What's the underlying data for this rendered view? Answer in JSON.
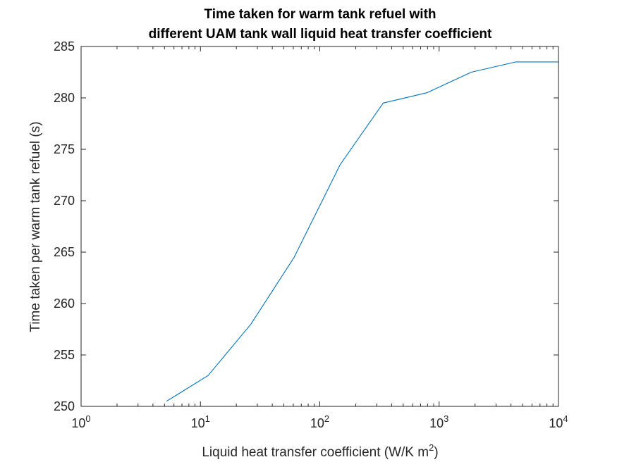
{
  "chart_data": {
    "type": "line",
    "title": [
      "Time taken for warm tank refuel with",
      "different UAM tank wall liquid heat transfer coefficient"
    ],
    "xlabel": "Liquid heat transfer coefficient (W/K m",
    "xlabel_sup": "2",
    "xlabel_end": ")",
    "ylabel": "Time taken per warm tank refuel (s)",
    "xscale": "log",
    "xlim": [
      1,
      10000
    ],
    "ylim": [
      250,
      285
    ],
    "xticks": [
      {
        "base": "10",
        "exp": "0",
        "value": 1
      },
      {
        "base": "10",
        "exp": "1",
        "value": 10
      },
      {
        "base": "10",
        "exp": "2",
        "value": 100
      },
      {
        "base": "10",
        "exp": "3",
        "value": 1000
      },
      {
        "base": "10",
        "exp": "4",
        "value": 10000
      }
    ],
    "yticks": [
      250,
      255,
      260,
      265,
      270,
      275,
      280,
      285
    ],
    "grid": false,
    "box": true,
    "line_color": "#0072BD",
    "series": [
      {
        "x": [
          5.2,
          11.6,
          26.5,
          61,
          148,
          340,
          790,
          1860,
          4400,
          10000
        ],
        "y": [
          250.5,
          253,
          258,
          264.5,
          273.5,
          279.5,
          280.5,
          282.5,
          283.5,
          283.5
        ]
      }
    ]
  }
}
